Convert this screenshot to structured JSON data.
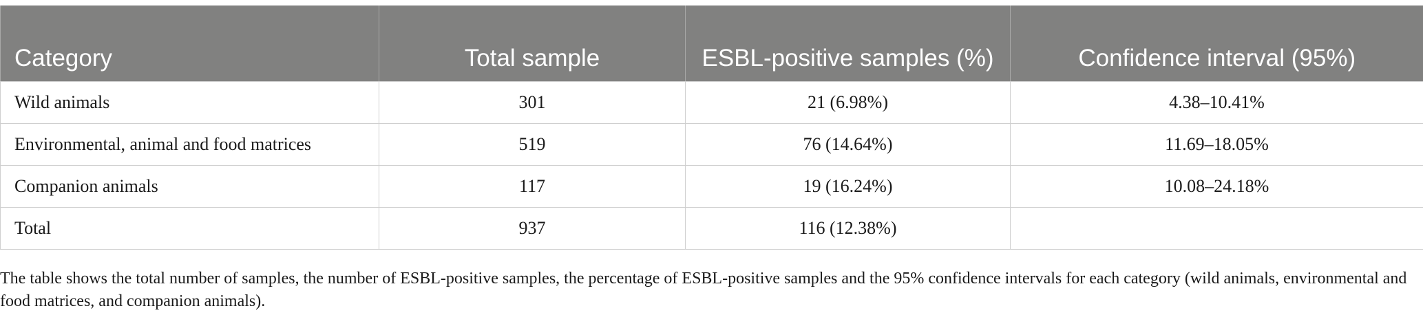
{
  "table": {
    "headers": [
      "Category",
      "Total sample",
      "ESBL-positive samples (%)",
      "Confidence interval (95%)"
    ],
    "rows": [
      [
        "Wild animals",
        "301",
        "21 (6.98%)",
        "4.38–10.41%"
      ],
      [
        "Environmental, animal and food matrices",
        "519",
        "76 (14.64%)",
        "11.69–18.05%"
      ],
      [
        "Companion animals",
        "117",
        "19 (16.24%)",
        "10.08–24.18%"
      ],
      [
        "Total",
        "937",
        "116 (12.38%)",
        ""
      ]
    ]
  },
  "footnote": "The table shows the total number of samples, the number of ESBL-positive samples, the percentage of ESBL-positive samples and the 95% confidence intervals for each category (wild animals, environmental and food matrices, and companion animals).",
  "colors": {
    "header_background": "#818180",
    "header_text": "#ffffff",
    "grid_line": "#cfcfcf"
  }
}
